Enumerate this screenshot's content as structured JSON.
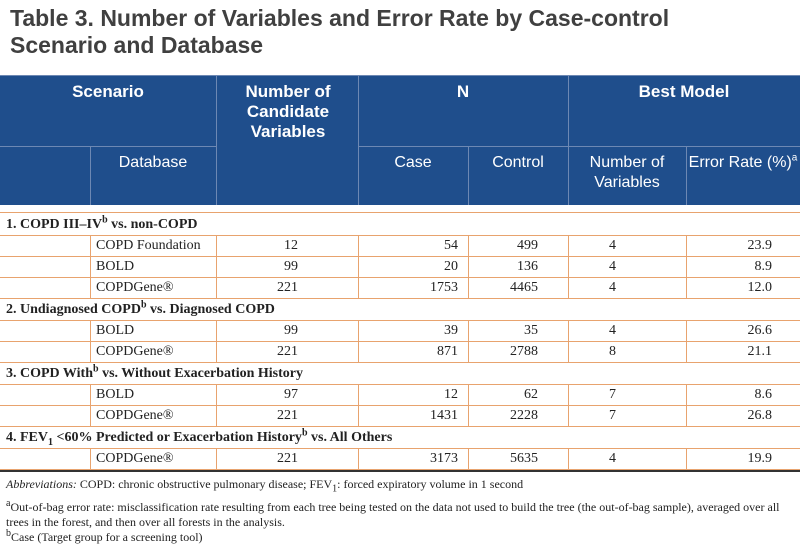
{
  "title": {
    "line1": "Table 3. Number of Variables and Error Rate by Case-control",
    "line2": "Scenario and Database"
  },
  "header": {
    "scenario": "Scenario",
    "database": "Database",
    "num_candidate": "Number of Candidate Variables",
    "n": "N",
    "case": "Case",
    "control": "Control",
    "best_model": "Best Model",
    "num_variables": "Number of Variables",
    "error_rate": "Error Rate (%)",
    "error_rate_sup": "a"
  },
  "sections": [
    {
      "label_pre": "1. COPD III–IV",
      "label_sup": "b",
      "label_post": " vs. non-COPD",
      "rows": [
        {
          "database": "COPD Foundation",
          "num_candidate": "12",
          "case": "54",
          "control": "499",
          "num_variables": "4",
          "error_rate": "23.9"
        },
        {
          "database": "BOLD",
          "num_candidate": "99",
          "case": "20",
          "control": "136",
          "num_variables": "4",
          "error_rate": "8.9"
        },
        {
          "database": "COPDGene®",
          "num_candidate": "221",
          "case": "1753",
          "control": "4465",
          "num_variables": "4",
          "error_rate": "12.0"
        }
      ]
    },
    {
      "label_pre": "2. Undiagnosed COPD",
      "label_sup": "b",
      "label_post": " vs. Diagnosed COPD",
      "rows": [
        {
          "database": "BOLD",
          "num_candidate": "99",
          "case": "39",
          "control": "35",
          "num_variables": "4",
          "error_rate": "26.6"
        },
        {
          "database": "COPDGene®",
          "num_candidate": "221",
          "case": "871",
          "control": "2788",
          "num_variables": "8",
          "error_rate": "21.1"
        }
      ]
    },
    {
      "label_pre": "3. COPD With",
      "label_sup": "b",
      "label_post": " vs. Without Exacerbation History",
      "rows": [
        {
          "database": "BOLD",
          "num_candidate": "97",
          "case": "12",
          "control": "62",
          "num_variables": "7",
          "error_rate": "8.6"
        },
        {
          "database": "COPDGene®",
          "num_candidate": "221",
          "case": "1431",
          "control": "2228",
          "num_variables": "7",
          "error_rate": "26.8"
        }
      ]
    },
    {
      "label_pre": "4. FEV",
      "label_sub": "1",
      "label_mid": " <60% Predicted or Exacerbation History",
      "label_sup": "b",
      "label_post": " vs. All Others",
      "rows": [
        {
          "database": "COPDGene®",
          "num_candidate": "221",
          "case": "3173",
          "control": "5635",
          "num_variables": "4",
          "error_rate": "19.9"
        }
      ]
    }
  ],
  "footnotes": {
    "abbrev_label": "Abbreviations:",
    "abbrev_text_a": " COPD: chronic obstructive pulmonary disease; FEV",
    "abbrev_sub": "1",
    "abbrev_text_b": ": forced expiratory volume in 1 second",
    "a_mark": "a",
    "a_text": "Out-of-bag error rate: misclassification rate resulting from each tree being tested on the data not used to build the tree (the out-of-bag sample), averaged over all trees in the forest, and then over all forests in the analysis.",
    "b_mark": "b",
    "b_text": "Case (Target group for a screening tool)"
  }
}
